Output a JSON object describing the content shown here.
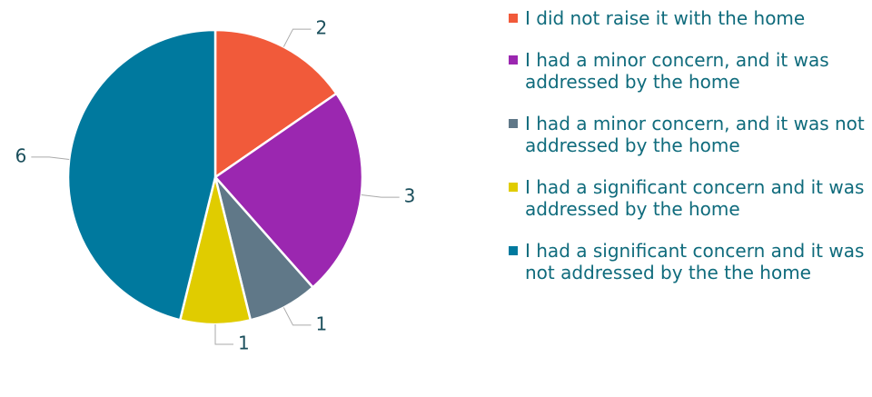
{
  "chart_data": {
    "type": "pie",
    "categories": [
      "I did not raise it with the home",
      "I had a minor concern, and it was addressed by the home",
      "I had a minor concern, and it was not addressed by the home",
      "I had a significant concern and it was addressed by the home",
      "I had a significant concern and it was not addressed by the the home"
    ],
    "values": [
      2,
      3,
      1,
      1,
      6
    ],
    "colors": [
      "#f15a3a",
      "#9b27b0",
      "#607888",
      "#e0cc00",
      "#00799e"
    ],
    "legend": "right"
  }
}
